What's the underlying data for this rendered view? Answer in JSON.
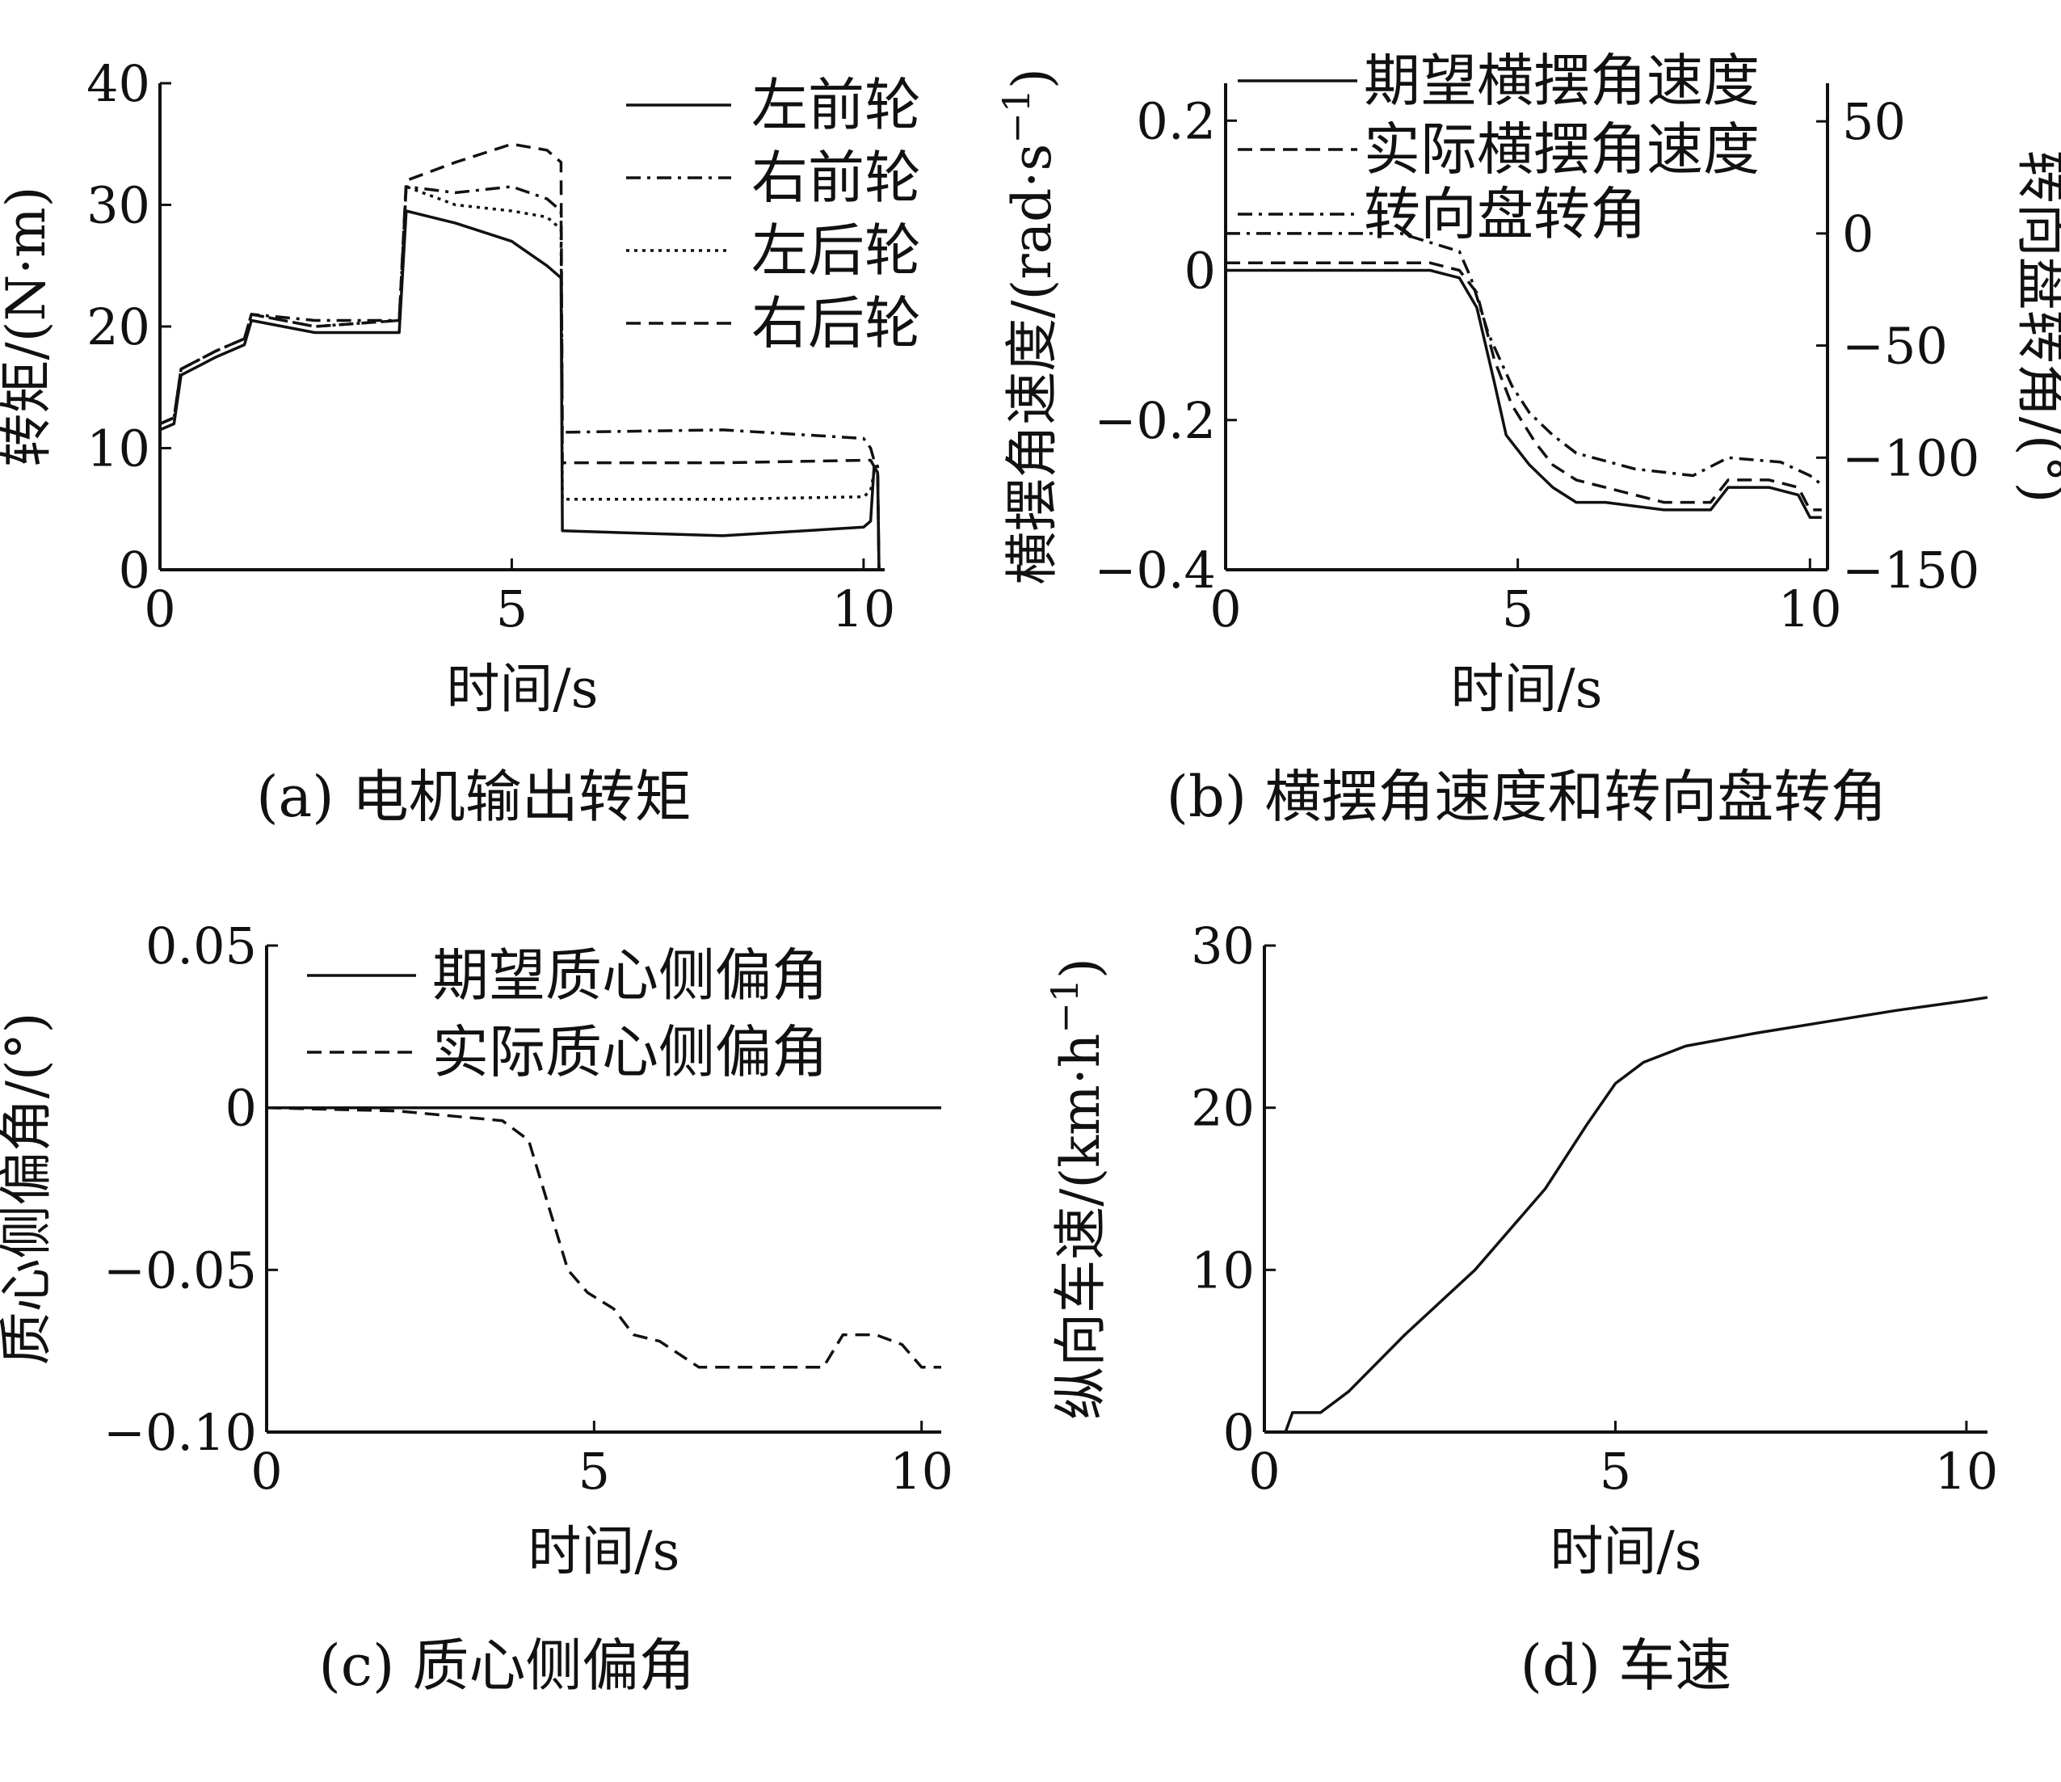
{
  "chart_data": [
    {
      "type": "line",
      "caption": "(a) 电机输出转矩",
      "xlabel": "时间/s",
      "ylabel": "转矩/(N·m)",
      "xlim": [
        0,
        10.3
      ],
      "ylim": [
        0,
        40
      ],
      "xticks": [
        "0",
        "5",
        "10"
      ],
      "yticks": [
        "0",
        "10",
        "20",
        "30",
        "40"
      ],
      "legend_position": "top-right",
      "series": [
        {
          "name": "左前轮",
          "style": "solid",
          "x": [
            0,
            0.2,
            0.3,
            0.8,
            1.2,
            1.3,
            2.2,
            3.4,
            3.5,
            4.2,
            5.0,
            5.5,
            5.7,
            5.72,
            8.0,
            10.0,
            10.1,
            10.15,
            10.2,
            10.22
          ],
          "y": [
            11.5,
            12,
            16,
            17.5,
            18.5,
            20.5,
            19.5,
            19.5,
            29.5,
            28.5,
            27,
            25,
            24,
            3.2,
            2.8,
            3.5,
            4.0,
            8.5,
            8.0,
            0
          ]
        },
        {
          "name": "右前轮",
          "style": "dashdot",
          "x": [
            0,
            0.2,
            0.3,
            0.8,
            1.2,
            1.3,
            2.2,
            3.4,
            3.5,
            4.2,
            5.0,
            5.5,
            5.7,
            5.72,
            8.0,
            10.0,
            10.1,
            10.15,
            10.2,
            10.22
          ],
          "y": [
            12,
            12.5,
            16.5,
            18,
            19,
            21,
            20.5,
            20.5,
            31.5,
            31,
            31.5,
            30.5,
            29.5,
            11.3,
            11.5,
            10.8,
            10.0,
            9.0,
            8.5,
            0
          ]
        },
        {
          "name": "左后轮",
          "style": "dotted",
          "x": [
            0,
            0.2,
            0.3,
            0.8,
            1.2,
            1.3,
            2.2,
            3.4,
            3.5,
            4.2,
            5.0,
            5.5,
            5.7,
            5.72,
            8.0,
            10.0,
            10.1,
            10.15,
            10.2,
            10.22
          ],
          "y": [
            12,
            12.5,
            16.5,
            18,
            19,
            21,
            20,
            20.5,
            31.5,
            30,
            29.5,
            29,
            28,
            5.8,
            5.8,
            6.0,
            6.5,
            8.0,
            8.0,
            0
          ]
        },
        {
          "name": "右后轮",
          "style": "dashed",
          "x": [
            0,
            0.2,
            0.3,
            0.8,
            1.2,
            1.3,
            2.2,
            3.4,
            3.5,
            4.2,
            5.0,
            5.5,
            5.7,
            5.72,
            8.0,
            10.0,
            10.1,
            10.15,
            10.2,
            10.22
          ],
          "y": [
            12,
            12.5,
            16.5,
            18,
            19,
            21,
            20,
            20.5,
            32,
            33.5,
            35,
            34.5,
            33.5,
            8.8,
            8.8,
            9.0,
            9.0,
            8.5,
            8.5,
            0
          ]
        }
      ]
    },
    {
      "type": "line",
      "caption": "(b) 横摆角速度和转向盘转角",
      "xlabel": "时间/s",
      "ylabel": "横摆角速度/(rad·s",
      "ylabel_sup": "−1",
      "ylabel_close": ")",
      "y2label": "转向盘转角/(°)",
      "xlim": [
        0,
        10.3
      ],
      "ylim": [
        -0.4,
        0.25
      ],
      "y2lim": [
        -150,
        67
      ],
      "xticks": [
        "0",
        "5",
        "10"
      ],
      "yticks": [
        "−0.4",
        "−0.2",
        "0",
        "0.2"
      ],
      "y2ticks": [
        "−150",
        "−100",
        "−50",
        "0",
        "50"
      ],
      "legend_position": "top-right",
      "series": [
        {
          "name": "期望横摆角速度",
          "style": "solid",
          "axis": "left",
          "x": [
            0,
            3.5,
            4.0,
            4.3,
            4.6,
            4.8,
            5.2,
            5.6,
            6.0,
            6.5,
            7.5,
            8.3,
            8.6,
            9.3,
            9.8,
            10.0,
            10.2
          ],
          "y": [
            0.0,
            0.0,
            -0.01,
            -0.05,
            -0.15,
            -0.22,
            -0.26,
            -0.29,
            -0.31,
            -0.31,
            -0.32,
            -0.32,
            -0.29,
            -0.29,
            -0.3,
            -0.33,
            -0.33
          ]
        },
        {
          "name": "实际横摆角速度",
          "style": "dashed",
          "axis": "left",
          "x": [
            0,
            3.5,
            4.0,
            4.3,
            4.6,
            4.9,
            5.3,
            5.6,
            6.0,
            6.5,
            7.5,
            8.3,
            8.6,
            9.3,
            9.8,
            10.0,
            10.2
          ],
          "y": [
            0.01,
            0.01,
            0.0,
            -0.03,
            -0.12,
            -0.18,
            -0.23,
            -0.26,
            -0.28,
            -0.29,
            -0.31,
            -0.31,
            -0.28,
            -0.28,
            -0.29,
            -0.32,
            -0.32
          ]
        },
        {
          "name": "转向盘转角",
          "style": "dashdot",
          "axis": "right",
          "x": [
            0,
            3.0,
            4.0,
            4.2,
            4.5,
            4.9,
            5.2,
            5.6,
            6.0,
            7.0,
            8.0,
            8.6,
            9.5,
            10.0,
            10.2
          ],
          "y": [
            0,
            0,
            -8,
            -20,
            -45,
            -68,
            -80,
            -90,
            -98,
            -105,
            -108,
            -100,
            -102,
            -108,
            -112
          ]
        }
      ]
    },
    {
      "type": "line",
      "caption": "(c) 质心侧偏角",
      "xlabel": "时间/s",
      "ylabel": "质心侧偏角/(°)",
      "xlim": [
        0,
        10.3
      ],
      "ylim": [
        -0.1,
        0.05
      ],
      "xticks": [
        "0",
        "5",
        "10"
      ],
      "yticks": [
        "−0.10",
        "−0.05",
        "0",
        "0.05"
      ],
      "legend_position": "top-right",
      "series": [
        {
          "name": "期望质心侧偏角",
          "style": "solid",
          "x": [
            0,
            10.3
          ],
          "y": [
            0,
            0
          ]
        },
        {
          "name": "实际质心侧偏角",
          "style": "dashed",
          "x": [
            0,
            2.0,
            3.6,
            4.0,
            4.3,
            4.6,
            4.9,
            5.3,
            5.6,
            6.0,
            6.6,
            8.5,
            8.8,
            9.3,
            9.7,
            10.0,
            10.3
          ],
          "y": [
            0,
            -0.001,
            -0.004,
            -0.01,
            -0.03,
            -0.05,
            -0.057,
            -0.062,
            -0.07,
            -0.072,
            -0.08,
            -0.08,
            -0.07,
            -0.07,
            -0.073,
            -0.08,
            -0.08
          ]
        }
      ]
    },
    {
      "type": "line",
      "caption": "(d) 车速",
      "xlabel": "时间/s",
      "ylabel": "纵向车速/(km·h",
      "ylabel_sup": "−1",
      "ylabel_close": ")",
      "xlim": [
        0,
        10.3
      ],
      "ylim": [
        0,
        30
      ],
      "xticks": [
        "0",
        "5",
        "10"
      ],
      "yticks": [
        "0",
        "10",
        "20",
        "30"
      ],
      "series": [
        {
          "name": "",
          "style": "solid",
          "x": [
            0,
            0.3,
            0.4,
            0.8,
            1.2,
            2.0,
            3.0,
            4.0,
            4.6,
            5.0,
            5.4,
            6.0,
            7.0,
            8.0,
            9.0,
            10.0,
            10.3
          ],
          "y": [
            0,
            0,
            1.2,
            1.2,
            2.5,
            6.0,
            10.0,
            15.0,
            19.0,
            21.5,
            22.8,
            23.8,
            24.6,
            25.3,
            26.0,
            26.6,
            26.8
          ]
        }
      ]
    }
  ]
}
